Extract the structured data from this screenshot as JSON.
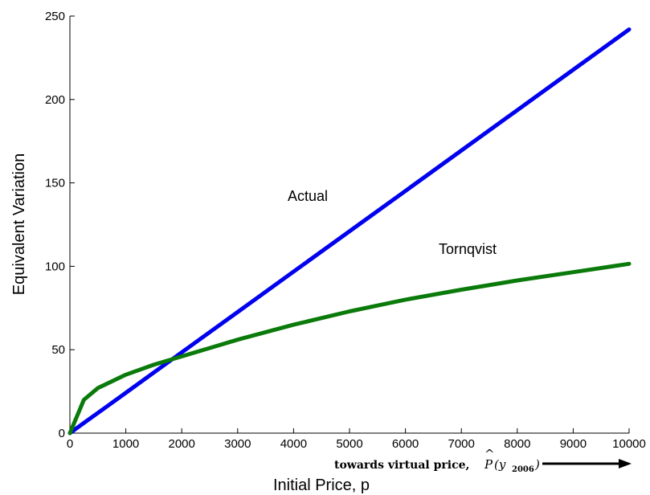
{
  "chart_data": {
    "type": "line",
    "title": "",
    "xlabel": "Initial Price, p",
    "ylabel": "Equivalent Variation",
    "xlim": [
      0,
      10000
    ],
    "ylim": [
      0,
      250
    ],
    "x_ticks": [
      "0",
      "1000",
      "2000",
      "3000",
      "4000",
      "5000",
      "6000",
      "7000",
      "8000",
      "9000",
      "10000"
    ],
    "y_ticks": [
      "0",
      "50",
      "100",
      "150",
      "200",
      "250"
    ],
    "grid": false,
    "x": [
      0,
      250,
      500,
      1000,
      1500,
      2000,
      2500,
      3000,
      4000,
      5000,
      6000,
      7000,
      8000,
      9000,
      10000
    ],
    "series": [
      {
        "name": "Actual",
        "color": "#0000ee",
        "values": [
          0,
          6.1,
          12.1,
          24.2,
          36.3,
          48.4,
          60.5,
          72.6,
          96.8,
          121,
          145.2,
          169.4,
          193.6,
          217.8,
          242
        ]
      },
      {
        "name": "Tornqvist",
        "color": "#0a7a0a",
        "values": [
          0,
          20,
          27,
          35,
          41,
          46,
          51,
          56,
          65,
          73,
          80,
          86,
          91.5,
          96.5,
          101.5
        ]
      }
    ],
    "annotations": {
      "actual_label": "Actual",
      "tornqvist_label": "Tornqvist",
      "arrow_text": "towards virtual price,",
      "arrow_math_prefix": "P",
      "arrow_math_hat": "^",
      "arrow_math_arg": "(y",
      "arrow_math_sub": "2006",
      "arrow_math_close": ")"
    }
  }
}
